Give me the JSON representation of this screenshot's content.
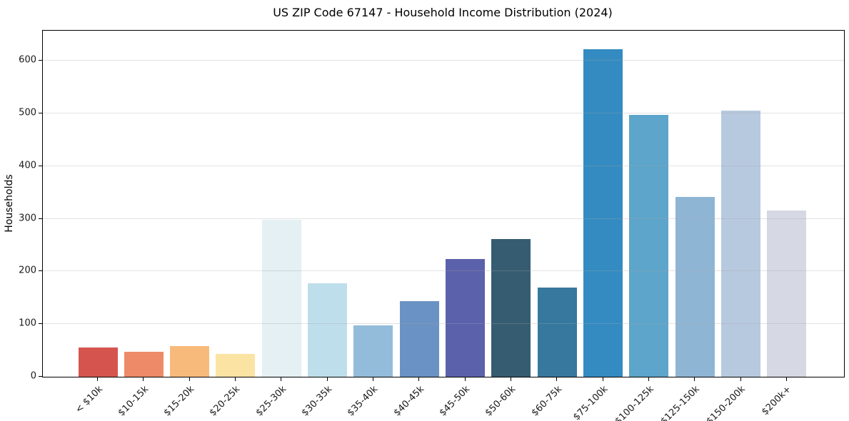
{
  "chart_data": {
    "type": "bar",
    "title": "US ZIP Code 67147 - Household Income Distribution (2024)",
    "xlabel": "",
    "ylabel": "Households",
    "categories": [
      "< $10k",
      "$10-15k",
      "$15-20k",
      "$20-25k",
      "$25-30k",
      "$30-35k",
      "$35-40k",
      "$40-45k",
      "$45-50k",
      "$50-60k",
      "$60-75k",
      "$75-100k",
      "$100-125k",
      "$125-150k",
      "$150-200k",
      "$200k+"
    ],
    "values": [
      56,
      47,
      58,
      44,
      298,
      178,
      98,
      143,
      223,
      262,
      169,
      622,
      497,
      342,
      506,
      316
    ],
    "bar_colors": [
      "#d5554e",
      "#ef8a68",
      "#f8ba7b",
      "#fbe3a4",
      "#e4f0f4",
      "#bedeeb",
      "#93bcdb",
      "#6b92c4",
      "#5b61ab",
      "#355c70",
      "#36789e",
      "#338bc1",
      "#5da5ca",
      "#8fb5d5",
      "#b7c9df",
      "#d6d8e4"
    ],
    "ylim": [
      0,
      657
    ],
    "yticks": [
      0,
      100,
      200,
      300,
      400,
      500,
      600
    ],
    "x_tick_rotation": 45,
    "grid": "horizontal gridlines, drawn with light transparency over bars",
    "grid_color": "#e8e8e8",
    "axis_color": "#000000",
    "background_color": "#ffffff",
    "legend": "none"
  }
}
